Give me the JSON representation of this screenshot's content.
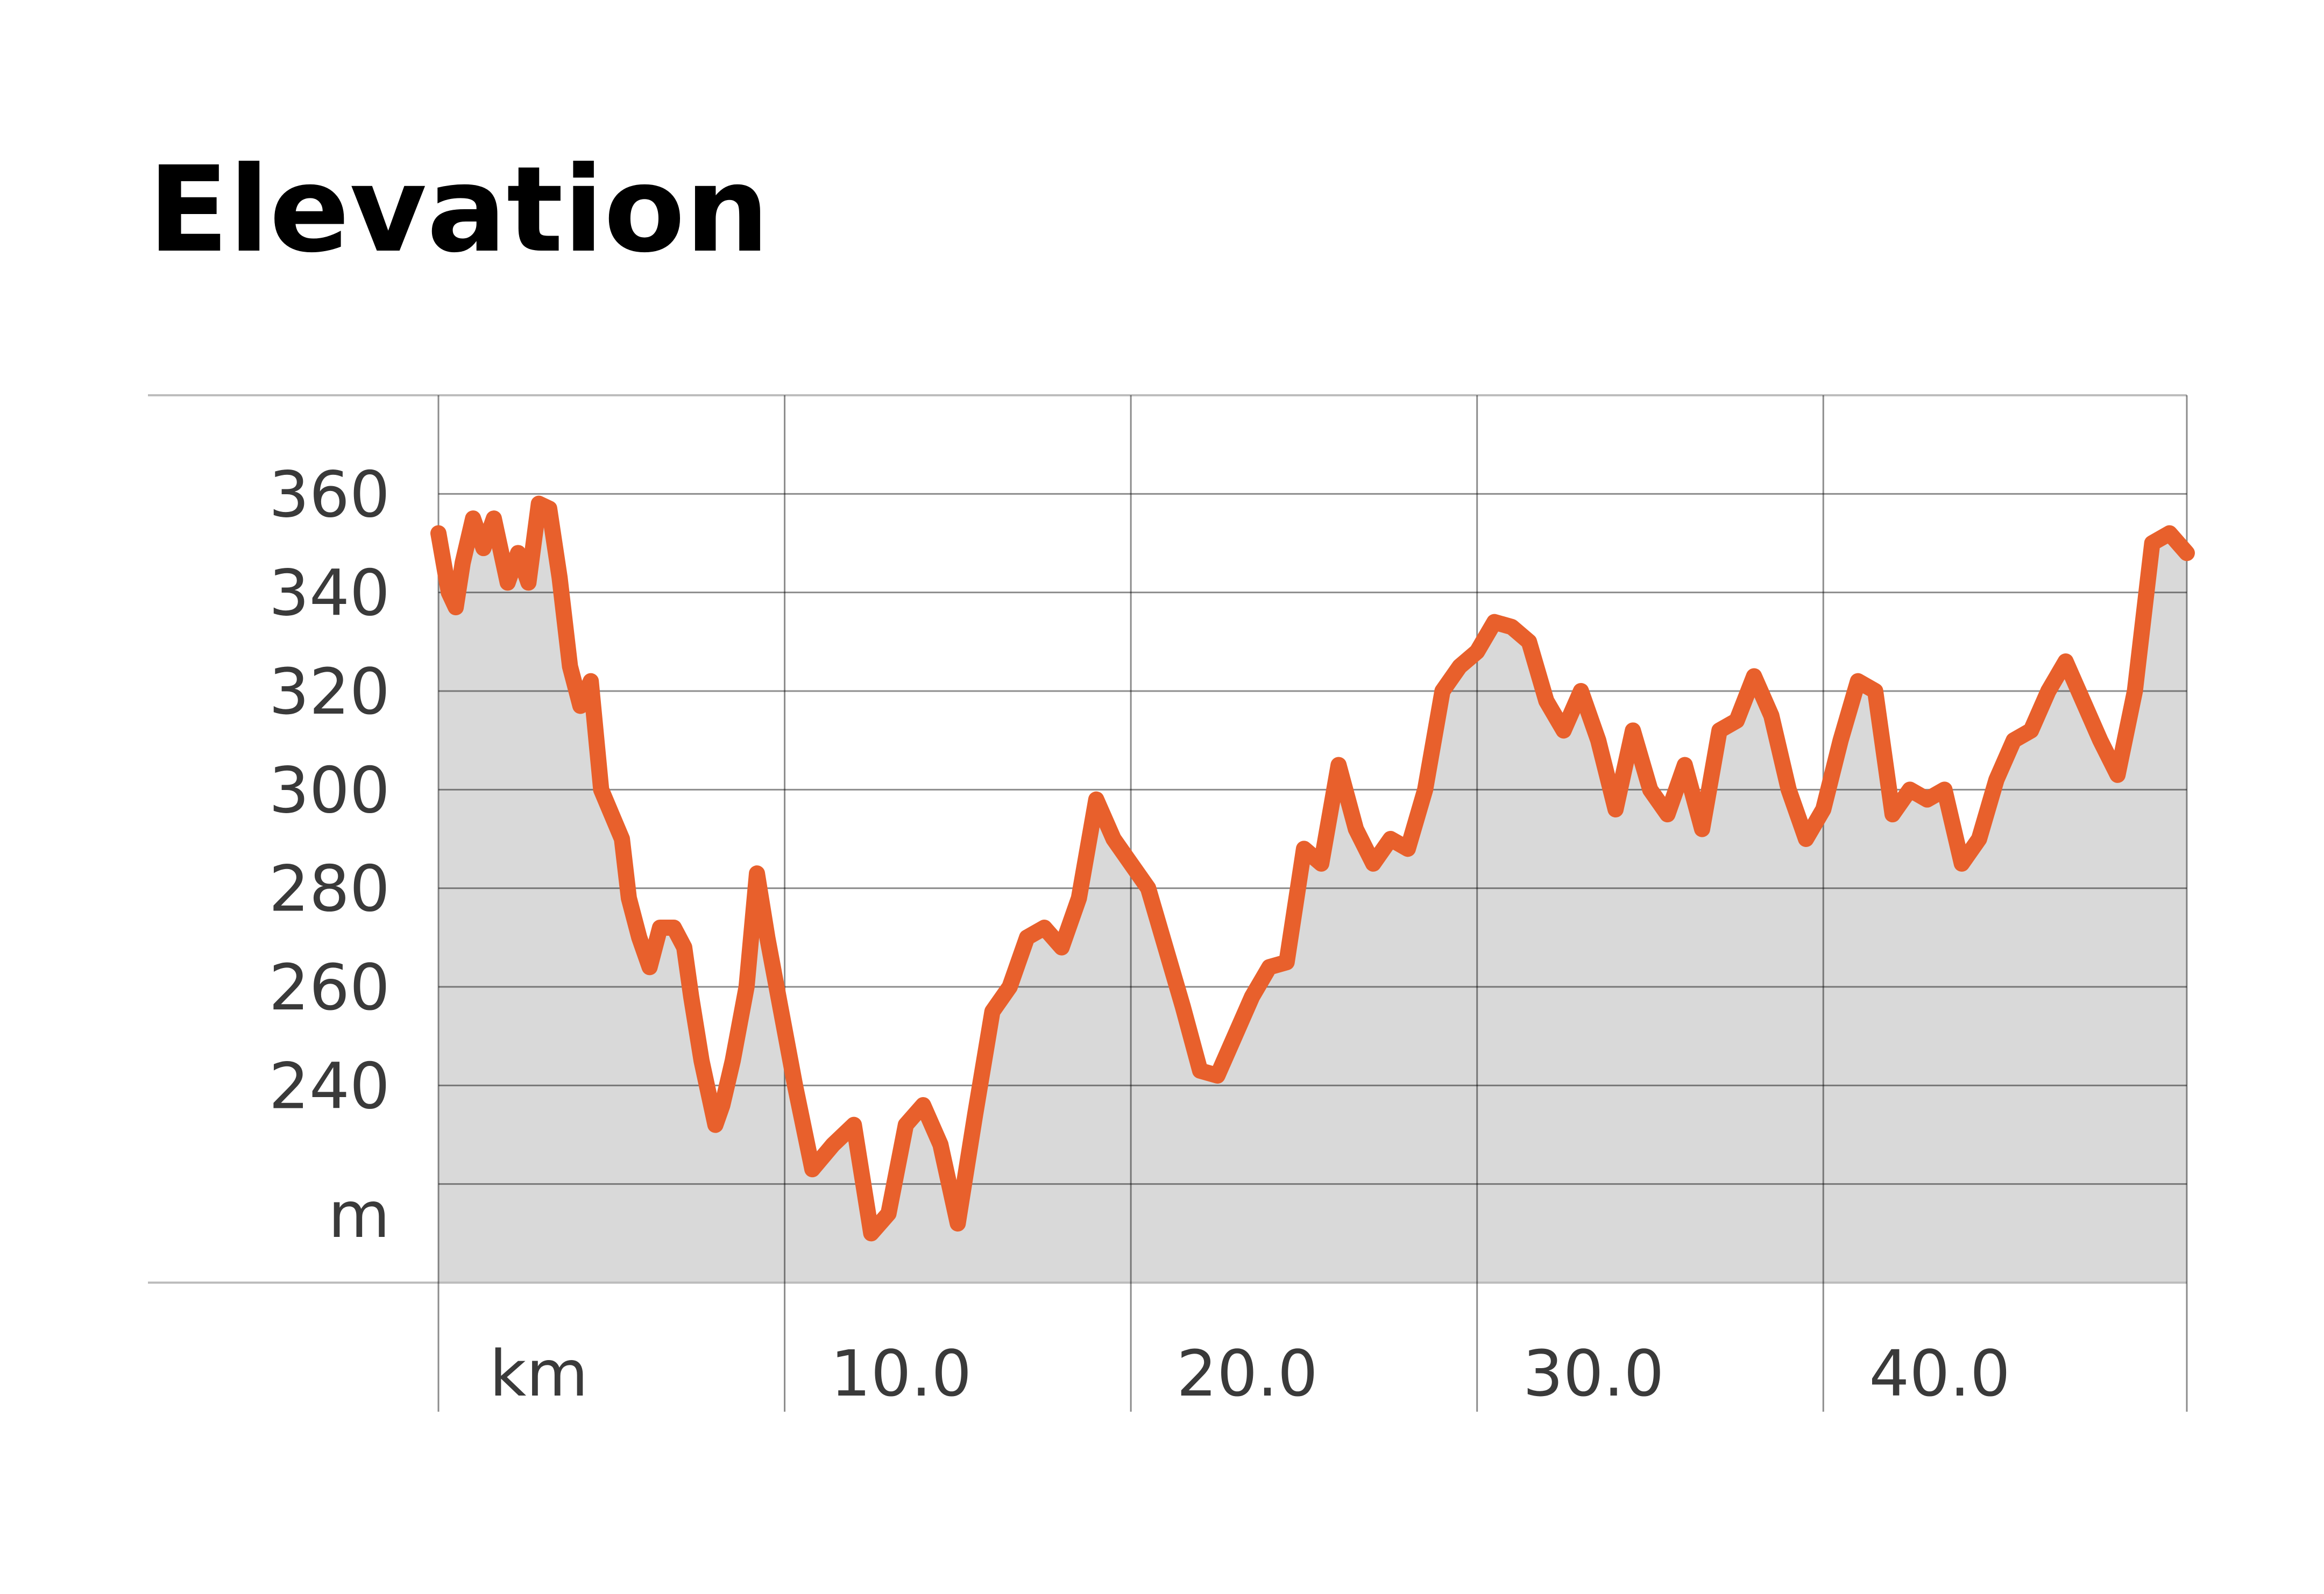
{
  "title": "Elevation",
  "colors": {
    "line": "#E8602C",
    "area": "#D9D9D9",
    "grid": "#000000",
    "text": "#3A3A3A"
  },
  "chart_data": {
    "type": "area",
    "title": "Elevation",
    "y_unit": "m",
    "x_unit": "km",
    "ylim": [
      200,
      380
    ],
    "xlim": [
      0,
      50.5
    ],
    "y_ticks": [
      360,
      340,
      320,
      300,
      280,
      260,
      240
    ],
    "x_ticks": [
      10.0,
      20.0,
      30.0,
      40.0
    ],
    "x_tick_labels": [
      "10.0",
      "20.0",
      "30.0",
      "40.0"
    ],
    "grid": true,
    "series": [
      {
        "x": [
          0,
          0.3,
          0.5,
          0.7,
          1.0,
          1.3,
          1.6,
          2.0,
          2.3,
          2.6,
          2.9,
          3.2,
          3.5,
          3.8,
          4.1,
          4.4,
          4.7,
          5.0,
          5.3,
          5.5,
          5.8,
          6.1,
          6.4,
          6.8,
          7.1,
          7.3,
          7.6,
          8.0,
          8.2,
          8.5,
          8.9,
          9.2,
          9.5,
          9.9,
          10.3,
          10.8,
          11.4,
          12.0,
          12.5,
          13.0,
          13.5,
          14.0,
          14.5,
          15.0,
          15.5,
          16.0,
          16.5,
          17.0,
          17.5,
          18.0,
          18.5,
          19.0,
          19.5,
          20.0,
          20.5,
          21.0,
          21.5,
          22.0,
          22.5,
          23.0,
          23.5,
          24.0,
          24.5,
          25.0,
          25.5,
          26.0,
          26.5,
          27.0,
          27.5,
          28.0,
          28.5,
          29.0,
          29.5,
          30.0,
          30.5,
          31.0,
          31.5,
          32.0,
          32.5,
          33.0,
          33.5,
          34.0,
          34.5,
          35.0,
          35.5,
          36.0,
          36.5,
          37.0,
          37.5,
          38.0,
          38.5,
          39.0,
          39.5,
          40.0,
          40.5,
          41.0,
          41.5,
          42.0,
          42.5,
          43.0,
          43.5,
          44.0,
          44.5,
          45.0,
          45.5,
          46.0,
          46.5,
          47.0,
          47.5,
          48.0,
          48.5,
          49.0,
          49.5,
          50.0,
          50.5
        ],
        "values": [
          352,
          340,
          337,
          346,
          355,
          349,
          355,
          342,
          348,
          342,
          358,
          357,
          343,
          325,
          317,
          322,
          300,
          295,
          290,
          278,
          270,
          264,
          272,
          272,
          268,
          258,
          245,
          232,
          236,
          245,
          260,
          283,
          270,
          255,
          240,
          223,
          228,
          232,
          210,
          214,
          232,
          236,
          228,
          212,
          234,
          255,
          260,
          270,
          272,
          268,
          278,
          298,
          290,
          285,
          280,
          268,
          256,
          243,
          242,
          250,
          258,
          264,
          265,
          288,
          285,
          305,
          292,
          285,
          290,
          288,
          300,
          320,
          325,
          328,
          334,
          333,
          330,
          318,
          312,
          320,
          310,
          296,
          312,
          300,
          295,
          305,
          292,
          312,
          314,
          323,
          315,
          300,
          290,
          296,
          310,
          322,
          320,
          295,
          300,
          298,
          300,
          285,
          290,
          302,
          310,
          312,
          320,
          326,
          318,
          310,
          303,
          320,
          350,
          352,
          348
        ]
      }
    ]
  }
}
